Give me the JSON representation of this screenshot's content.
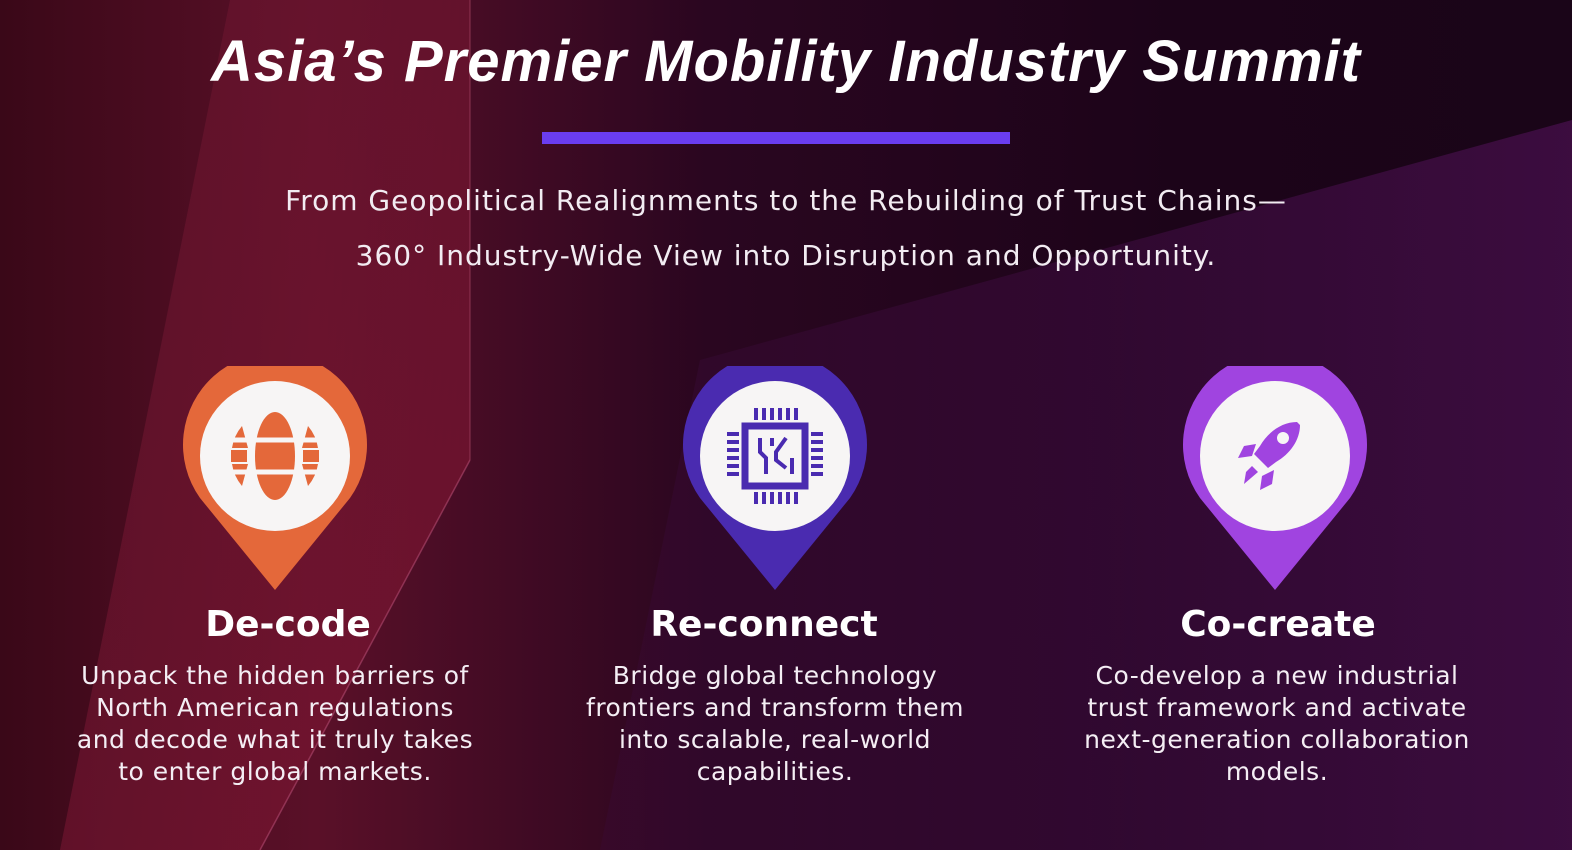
{
  "title": "Asia’s Premier Mobility Industry Summit",
  "accent_color": "#6a3df0",
  "subtitle": {
    "line1": "From Geopolitical Realignments to the Rebuilding of Trust Chains—",
    "line2": "360° Industry-Wide View into Disruption and Opportunity."
  },
  "features": [
    {
      "title": "De-code",
      "icon": "globe-icon",
      "color": "#e4683a",
      "desc": [
        "Unpack the hidden barriers of",
        "North American regulations",
        "and decode what it truly takes",
        "to enter global markets."
      ]
    },
    {
      "title": "Re-connect",
      "icon": "chip-icon",
      "color": "#4a2bb0",
      "desc": [
        "Bridge global technology",
        "frontiers and transform them",
        "into scalable, real-world",
        "capabilities."
      ]
    },
    {
      "title": "Co-create",
      "icon": "rocket-icon",
      "color": "#a044e0",
      "desc": [
        "Co-develop a new industrial",
        "trust framework and activate",
        "next-generation collaboration",
        "models."
      ]
    }
  ]
}
